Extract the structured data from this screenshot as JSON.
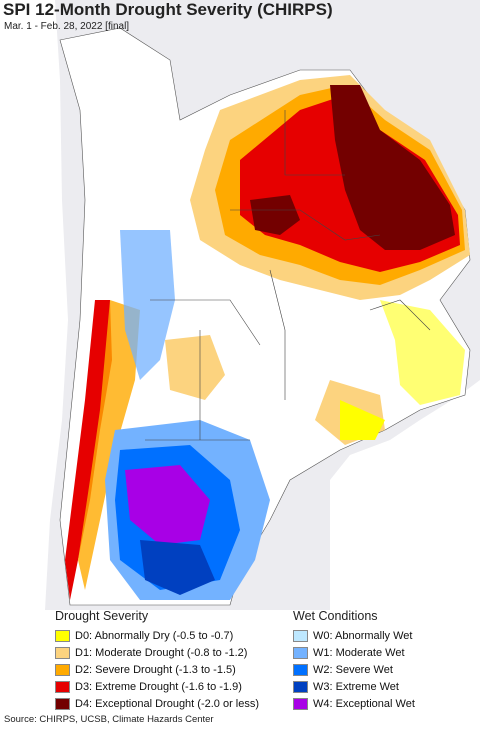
{
  "title": "SPI 12-Month Drought Severity (CHIRPS)",
  "subtitle": "Mar. 1 - Feb. 28, 2022 [final]",
  "legend_drought": {
    "heading": "Drought Severity",
    "items": [
      {
        "label": "D0: Abnormally Dry (-0.5 to -0.7)",
        "color": "#ffff00"
      },
      {
        "label": "D1: Moderate Drought (-0.8 to -1.2)",
        "color": "#fcd37f"
      },
      {
        "label": "D2: Severe Drought (-1.3 to -1.5)",
        "color": "#ffaa00"
      },
      {
        "label": "D3: Extreme Drought (-1.6 to -1.9)",
        "color": "#e60000"
      },
      {
        "label": "D4: Exceptional Drought (-2.0 or less)",
        "color": "#730000"
      }
    ]
  },
  "legend_wet": {
    "heading": "Wet Conditions",
    "items": [
      {
        "label": "W0: Abnormally Wet",
        "color": "#bee8ff"
      },
      {
        "label": "W1: Moderate Wet",
        "color": "#73b2ff"
      },
      {
        "label": "W2: Severe Wet",
        "color": "#0070ff"
      },
      {
        "label": "W3: Extreme Wet",
        "color": "#0040c0"
      },
      {
        "label": "W4: Exceptional Wet",
        "color": "#a800e6"
      }
    ]
  },
  "source": "Source: CHIRPS, UCSB, Climate Hazards Center"
}
